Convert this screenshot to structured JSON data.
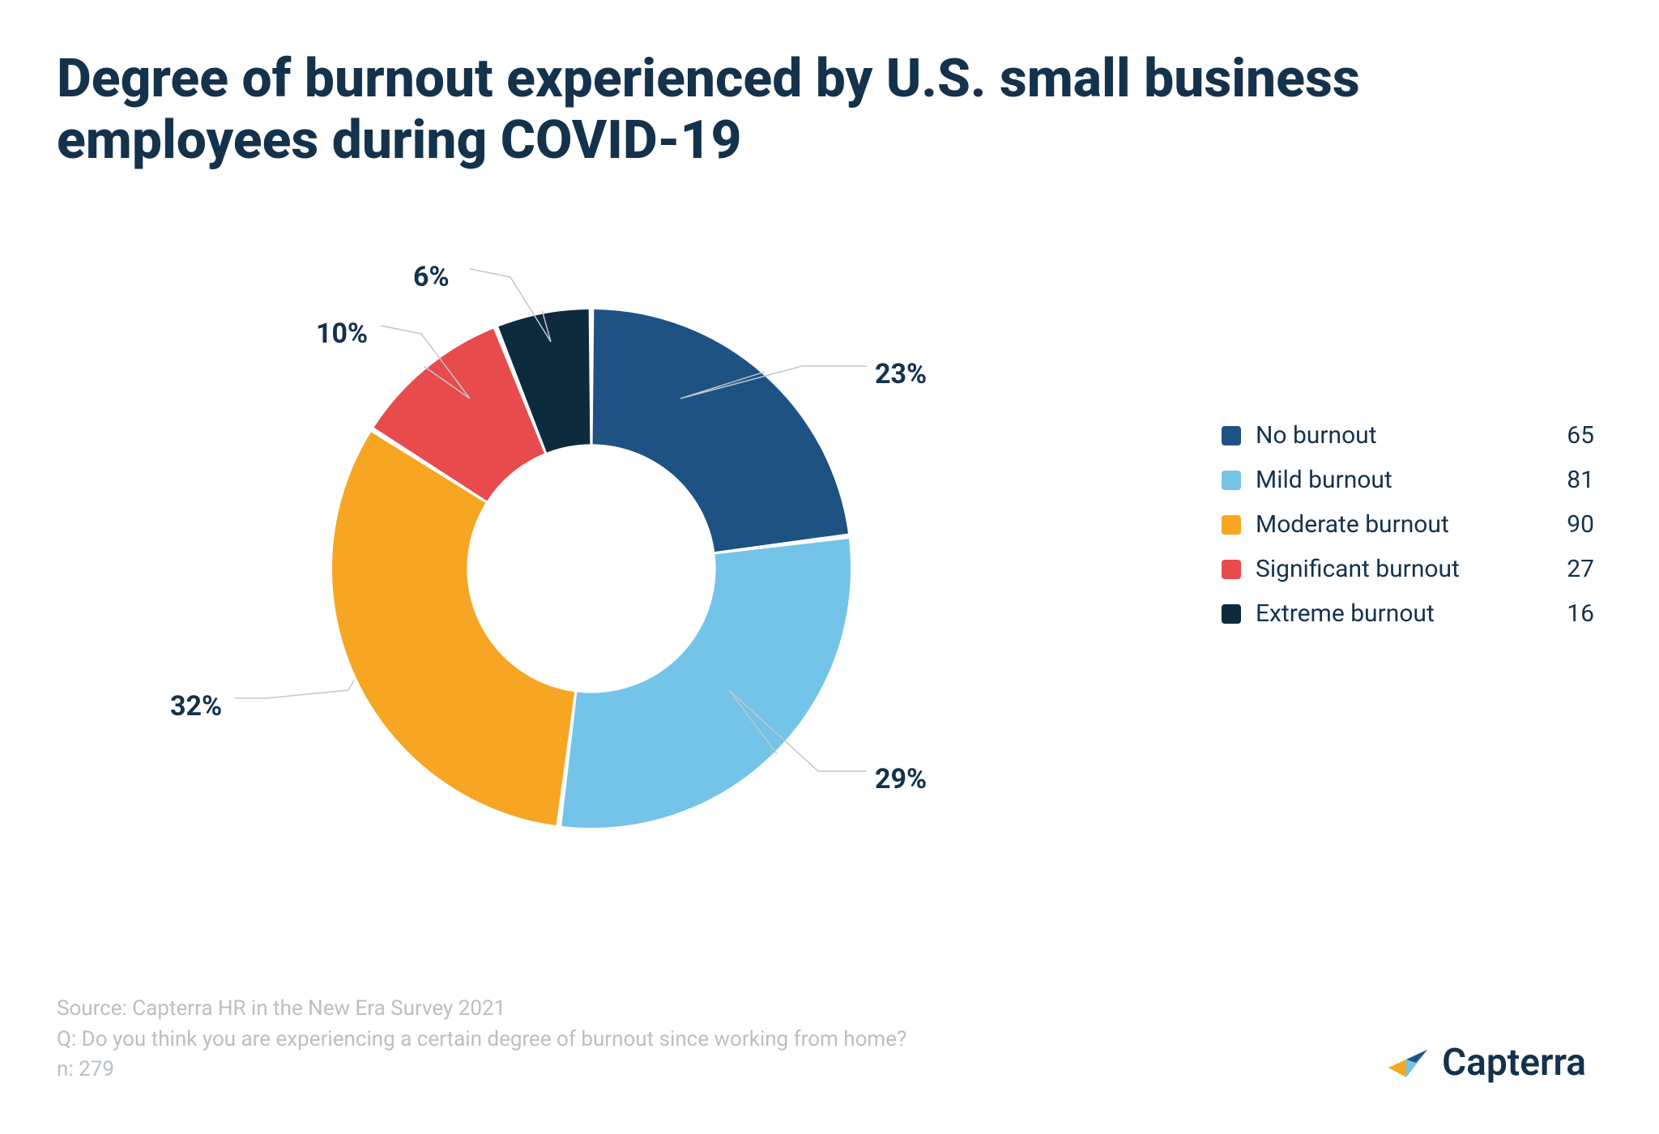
{
  "title": "Degree of burnout experienced by U.S. small business employees during COVID-19",
  "chart": {
    "type": "donut",
    "inner_radius_ratio": 0.48,
    "start_angle_deg": 0,
    "background_color": "#ffffff",
    "slice_gap_deg": 1.2,
    "label_fontsize": 34,
    "label_fontweight": 700,
    "label_color": "#14324c",
    "leader_color": "#bfc7ce",
    "series": [
      {
        "label": "No burnout",
        "count": 65,
        "percent": 23,
        "color": "#1d5283"
      },
      {
        "label": "Mild burnout",
        "count": 81,
        "percent": 29,
        "color": "#73c4e8"
      },
      {
        "label": "Moderate burnout",
        "count": 90,
        "percent": 32,
        "color": "#f6a623"
      },
      {
        "label": "Significant burnout",
        "count": 27,
        "percent": 10,
        "color": "#e74b4b"
      },
      {
        "label": "Extreme burnout",
        "count": 16,
        "percent": 6,
        "color": "#0e2b3e"
      }
    ]
  },
  "legend": {
    "fontsize": 30,
    "text_color": "#14324c",
    "swatch_radius": 4
  },
  "footer": {
    "source": "Source: Capterra HR in the New Era Survey 2021",
    "question": "Q: Do you think you are experiencing a certain degree of burnout since working from home?",
    "n": "n: 279",
    "color": "#b8bfc5",
    "fontsize": 26
  },
  "brand": {
    "name": "Capterra",
    "text_color": "#14324c",
    "mark_colors": {
      "orange": "#f6a623",
      "blue": "#73c4e8",
      "navy": "#1d5283"
    }
  }
}
